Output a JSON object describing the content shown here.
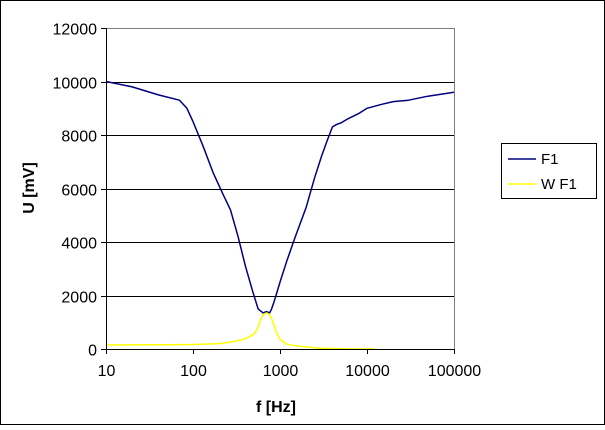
{
  "chart_data": {
    "type": "line",
    "title": "",
    "xlabel": "f [Hz]",
    "ylabel": "U [mV]",
    "xscale": "log",
    "xlim": [
      10,
      100000
    ],
    "ylim": [
      0,
      12000
    ],
    "x_ticks": [
      "10",
      "100",
      "1000",
      "10000",
      "100000"
    ],
    "y_ticks": [
      "0",
      "2000",
      "4000",
      "6000",
      "8000",
      "10000",
      "12000"
    ],
    "grid": "horizontal",
    "legend_position": "right",
    "series": [
      {
        "name": "F1",
        "color": "#000080",
        "x": [
          10,
          20,
          40,
          70,
          85,
          100,
          130,
          170,
          220,
          270,
          330,
          400,
          480,
          560,
          640,
          700,
          760,
          800,
          850,
          900,
          1000,
          1200,
          1500,
          2000,
          2500,
          3000,
          3500,
          4000,
          4500,
          5000,
          6000,
          8000,
          10000,
          15000,
          20000,
          30000,
          50000,
          100000
        ],
        "y": [
          10000,
          9800,
          9500,
          9300,
          9000,
          8500,
          7600,
          6600,
          5800,
          5200,
          4200,
          3100,
          2200,
          1500,
          1350,
          1400,
          1350,
          1500,
          1750,
          2000,
          2500,
          3300,
          4200,
          5300,
          6400,
          7200,
          7800,
          8300,
          8400,
          8450,
          8600,
          8800,
          9000,
          9150,
          9250,
          9300,
          9450,
          9600
        ]
      },
      {
        "name": "W F1",
        "color": "#ffff00",
        "x": [
          10,
          50,
          100,
          200,
          300,
          400,
          500,
          550,
          600,
          650,
          700,
          750,
          800,
          850,
          900,
          1000,
          1200,
          1500,
          2000,
          2500,
          3000,
          4000,
          6000,
          10000,
          12000
        ],
        "y": [
          150,
          160,
          170,
          200,
          280,
          380,
          550,
          750,
          1100,
          1300,
          1350,
          1300,
          1150,
          900,
          650,
          350,
          180,
          120,
          80,
          50,
          30,
          15,
          5,
          0,
          0
        ]
      }
    ]
  }
}
